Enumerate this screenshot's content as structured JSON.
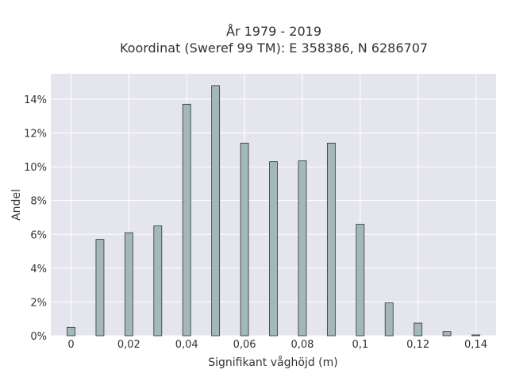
{
  "chart_data": {
    "type": "bar",
    "title_line1": "År 1979 - 2019",
    "title_line2": "Koordinat (Sweref 99 TM): E 358386, N 6286707",
    "xlabel": "Signifikant våghöjd (m)",
    "ylabel": "Andel",
    "xlim": [
      -0.007,
      0.147
    ],
    "ylim": [
      0,
      15.5
    ],
    "grid": true,
    "x": [
      0,
      0.01,
      0.02,
      0.03,
      0.04,
      0.05,
      0.06,
      0.07,
      0.08,
      0.09,
      0.1,
      0.11,
      0.12,
      0.13,
      0.14
    ],
    "values": [
      0.5,
      5.7,
      6.1,
      6.5,
      13.7,
      14.8,
      11.4,
      10.3,
      10.35,
      11.4,
      6.6,
      1.95,
      0.75,
      0.25,
      0.05
    ],
    "bar_color": "#a3b8b8",
    "bar_edge_color": "#333333",
    "x_ticks": [
      {
        "value": 0,
        "label": "0"
      },
      {
        "value": 0.02,
        "label": "0,02"
      },
      {
        "value": 0.04,
        "label": "0,04"
      },
      {
        "value": 0.06,
        "label": "0,06"
      },
      {
        "value": 0.08,
        "label": "0,08"
      },
      {
        "value": 0.1,
        "label": "0,1"
      },
      {
        "value": 0.12,
        "label": "0,12"
      },
      {
        "value": 0.14,
        "label": "0,14"
      }
    ],
    "y_ticks": [
      {
        "value": 0,
        "label": "0%"
      },
      {
        "value": 2,
        "label": "2%"
      },
      {
        "value": 4,
        "label": "4%"
      },
      {
        "value": 6,
        "label": "6%"
      },
      {
        "value": 8,
        "label": "8%"
      },
      {
        "value": 10,
        "label": "10%"
      },
      {
        "value": 12,
        "label": "12%"
      },
      {
        "value": 14,
        "label": "14%"
      }
    ]
  }
}
